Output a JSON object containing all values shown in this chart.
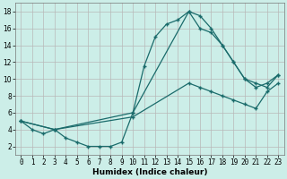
{
  "xlabel": "Humidex (Indice chaleur)",
  "bg_color": "#cceee8",
  "grid_color": "#b8b8b8",
  "line_color": "#1a6b6b",
  "xlim": [
    -0.5,
    23.5
  ],
  "ylim": [
    1,
    19
  ],
  "xticks": [
    0,
    1,
    2,
    3,
    4,
    5,
    6,
    7,
    8,
    9,
    10,
    11,
    12,
    13,
    14,
    15,
    16,
    17,
    18,
    19,
    20,
    21,
    22,
    23
  ],
  "yticks": [
    2,
    4,
    6,
    8,
    10,
    12,
    14,
    16,
    18
  ],
  "line1_x": [
    0,
    1,
    2,
    3,
    4,
    5,
    6,
    7,
    8,
    9,
    10,
    11,
    12,
    13,
    14,
    15,
    16,
    17,
    18,
    19,
    20,
    21,
    22,
    23
  ],
  "line1_y": [
    5,
    4,
    3.5,
    4,
    3,
    2.5,
    2,
    2,
    2,
    2.5,
    6,
    11.5,
    15,
    16.5,
    17,
    18,
    17.5,
    16,
    14,
    12,
    10,
    9,
    9.5,
    10.5
  ],
  "line2_x": [
    0,
    3,
    10,
    15,
    16,
    17,
    18,
    19,
    20,
    21,
    22,
    23
  ],
  "line2_y": [
    5,
    4,
    6,
    18,
    16,
    15.5,
    14,
    12,
    10,
    9.5,
    9,
    10.5
  ],
  "line3_x": [
    0,
    3,
    10,
    15,
    16,
    17,
    18,
    19,
    20,
    21,
    22,
    23
  ],
  "line3_y": [
    5,
    4,
    5.5,
    9.5,
    9,
    8.5,
    8,
    7.5,
    7,
    6.5,
    8.5,
    9.5
  ],
  "label_fontsize": 5.5,
  "xlabel_fontsize": 6.5
}
